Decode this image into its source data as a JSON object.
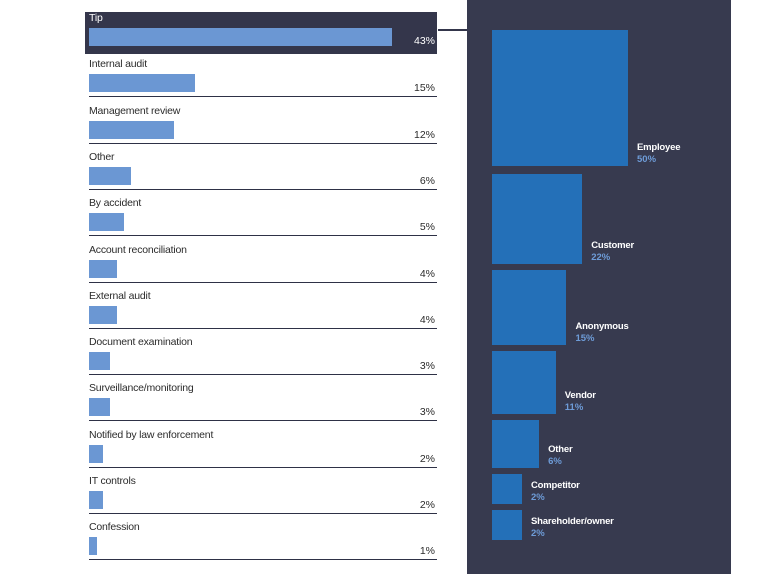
{
  "chart_data": [
    {
      "type": "bar",
      "orientation": "horizontal",
      "categories": [
        "Tip",
        "Internal audit",
        "Management review",
        "Other",
        "By accident",
        "Account reconciliation",
        "External audit",
        "Document examination",
        "Surveillance/monitoring",
        "Notified by law enforcement",
        "IT controls",
        "Confession"
      ],
      "values": [
        43,
        15,
        12,
        6,
        5,
        4,
        4,
        3,
        3,
        2,
        2,
        1
      ],
      "value_labels": [
        "43%",
        "15%",
        "12%",
        "6%",
        "5%",
        "4%",
        "4%",
        "3%",
        "3%",
        "2%",
        "2%",
        "1%"
      ],
      "highlight": "Tip",
      "bar_color": "#6b97d3",
      "highlight_bg": "#34364b"
    },
    {
      "type": "bar",
      "style": "proportional-squares",
      "categories": [
        "Employee",
        "Customer",
        "Anonymous",
        "Vendor",
        "Other",
        "Competitor",
        "Shareholder/owner"
      ],
      "values": [
        50,
        22,
        15,
        11,
        6,
        2,
        2
      ],
      "value_labels": [
        "50%",
        "22%",
        "15%",
        "11%",
        "6%",
        "2%",
        "2%"
      ],
      "panel_color": "#373a4f",
      "square_color": "#2470b8",
      "value_color": "#6e9cd8"
    }
  ]
}
